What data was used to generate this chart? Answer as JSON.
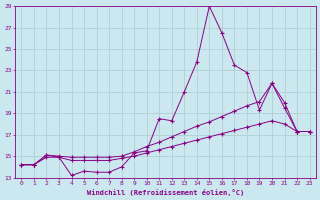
{
  "xlabel": "Windchill (Refroidissement éolien,°C)",
  "background_color": "#cbe8f0",
  "line_color": "#880088",
  "grid_color": "#a8ccd0",
  "xlim": [
    -0.5,
    23.5
  ],
  "ylim": [
    13,
    29
  ],
  "yticks": [
    13,
    15,
    17,
    19,
    21,
    23,
    25,
    27,
    29
  ],
  "xticks": [
    0,
    1,
    2,
    3,
    4,
    5,
    6,
    7,
    8,
    9,
    10,
    11,
    12,
    13,
    14,
    15,
    16,
    17,
    18,
    19,
    20,
    21,
    22,
    23
  ],
  "line1_x": [
    0,
    1,
    2,
    3,
    4,
    5,
    6,
    7,
    8,
    9,
    10,
    11,
    12,
    13,
    14,
    15,
    16,
    17,
    18,
    19,
    20,
    21,
    22,
    23
  ],
  "line1_y": [
    14.2,
    14.2,
    15.1,
    14.9,
    13.2,
    13.6,
    13.5,
    13.5,
    14.0,
    15.3,
    15.5,
    18.5,
    18.3,
    21.0,
    23.8,
    29.0,
    26.5,
    23.5,
    22.8,
    19.3,
    21.8,
    20.0,
    17.3,
    17.3
  ],
  "line2_x": [
    0,
    1,
    2,
    3,
    4,
    5,
    6,
    7,
    8,
    9,
    10,
    11,
    12,
    13,
    14,
    15,
    16,
    17,
    18,
    19,
    20,
    21,
    22,
    23
  ],
  "line2_y": [
    14.2,
    14.2,
    15.1,
    15.0,
    14.9,
    14.9,
    14.9,
    14.9,
    15.0,
    15.4,
    15.9,
    16.3,
    16.8,
    17.3,
    17.8,
    18.2,
    18.7,
    19.2,
    19.7,
    20.1,
    21.8,
    19.5,
    17.3,
    17.3
  ],
  "line3_x": [
    0,
    1,
    2,
    3,
    4,
    5,
    6,
    7,
    8,
    9,
    10,
    11,
    12,
    13,
    14,
    15,
    16,
    17,
    18,
    19,
    20,
    21,
    22,
    23
  ],
  "line3_y": [
    14.2,
    14.2,
    14.9,
    14.9,
    14.6,
    14.6,
    14.6,
    14.6,
    14.8,
    15.0,
    15.3,
    15.6,
    15.9,
    16.2,
    16.5,
    16.8,
    17.1,
    17.4,
    17.7,
    18.0,
    18.3,
    18.0,
    17.3,
    17.3
  ]
}
